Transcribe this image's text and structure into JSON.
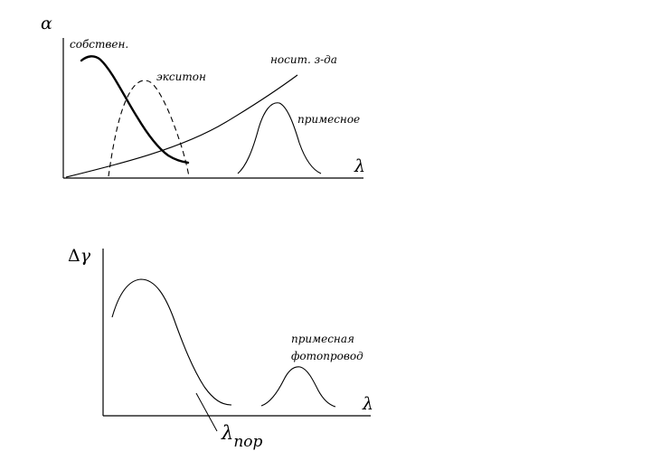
{
  "top_graph": {
    "y_axis": "α",
    "x_axis": "λ",
    "curves": {
      "intrinsic": "собствен.",
      "exciton": "экситон",
      "free_carrier": "носит. з-да",
      "impurity": "примесное"
    }
  },
  "bottom_graph": {
    "y_axis_delta": "Δ",
    "y_axis_symbol": "γ",
    "x_axis": "λ",
    "impurity_label_line1": "примесная",
    "impurity_label_line2": "фотопровод",
    "threshold_symbol": "λ",
    "threshold_subscript": "пор"
  }
}
